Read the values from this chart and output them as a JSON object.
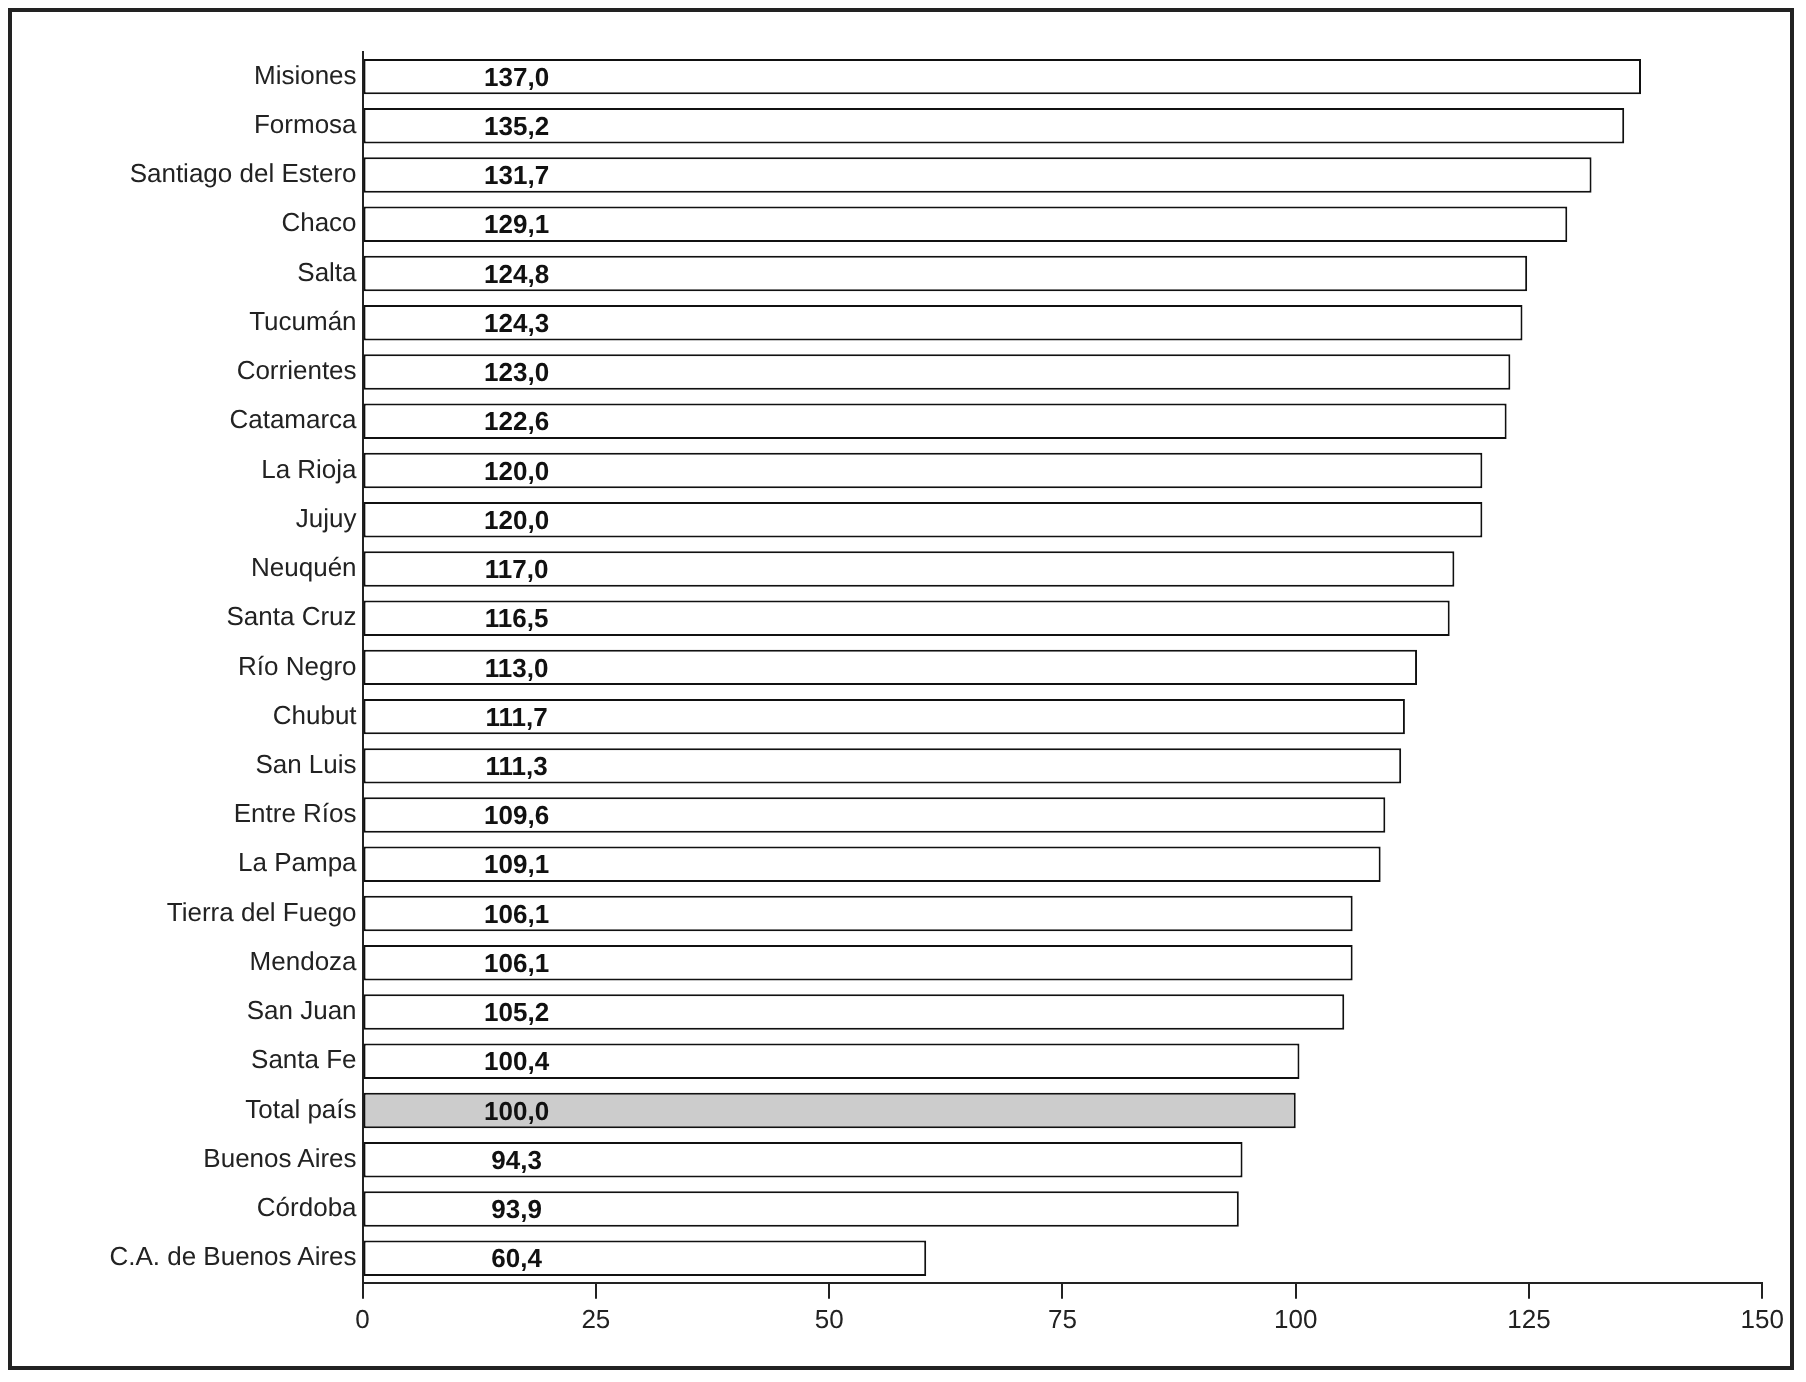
{
  "chart_data": {
    "type": "bar",
    "orientation": "horizontal",
    "categories": [
      "Misiones",
      "Formosa",
      "Santiago del Estero",
      "Chaco",
      "Salta",
      "Tucumán",
      "Corrientes",
      "Catamarca",
      "La Rioja",
      "Jujuy",
      "Neuquén",
      "Santa Cruz",
      "Río Negro",
      "Chubut",
      "San Luis",
      "Entre Ríos",
      "La Pampa",
      "Tierra del Fuego",
      "Mendoza",
      "San Juan",
      "Santa Fe",
      "Total país",
      "Buenos Aires",
      "Córdoba",
      "C.A. de Buenos Aires"
    ],
    "values": [
      137.0,
      135.2,
      131.7,
      129.1,
      124.8,
      124.3,
      123.0,
      122.6,
      120.0,
      120.0,
      117.0,
      116.5,
      113.0,
      111.7,
      111.3,
      109.6,
      109.1,
      106.1,
      106.1,
      105.2,
      100.4,
      100.0,
      94.3,
      93.9,
      60.4
    ],
    "value_labels": [
      "137,0",
      "135,2",
      "131,7",
      "129,1",
      "124,8",
      "124,3",
      "123,0",
      "122,6",
      "120,0",
      "120,0",
      "117,0",
      "116,5",
      "113,0",
      "111,7",
      "111,3",
      "109,6",
      "109,1",
      "106,1",
      "106,1",
      "105,2",
      "100,4",
      "100,0",
      "94,3",
      "93,9",
      "60,4"
    ],
    "colors": [
      "#ffffff",
      "#ffffff",
      "#ffffff",
      "#ffffff",
      "#ffffff",
      "#ffffff",
      "#ffffff",
      "#ffffff",
      "#ffffff",
      "#ffffff",
      "#ffffff",
      "#ffffff",
      "#ffffff",
      "#ffffff",
      "#ffffff",
      "#ffffff",
      "#ffffff",
      "#ffffff",
      "#ffffff",
      "#ffffff",
      "#ffffff",
      "#cccccc",
      "#ffffff",
      "#ffffff",
      "#ffffff"
    ],
    "xlim": [
      0,
      150
    ],
    "xticks": [
      0,
      25,
      50,
      75,
      100,
      125,
      150
    ],
    "grid": false,
    "legend": false
  }
}
